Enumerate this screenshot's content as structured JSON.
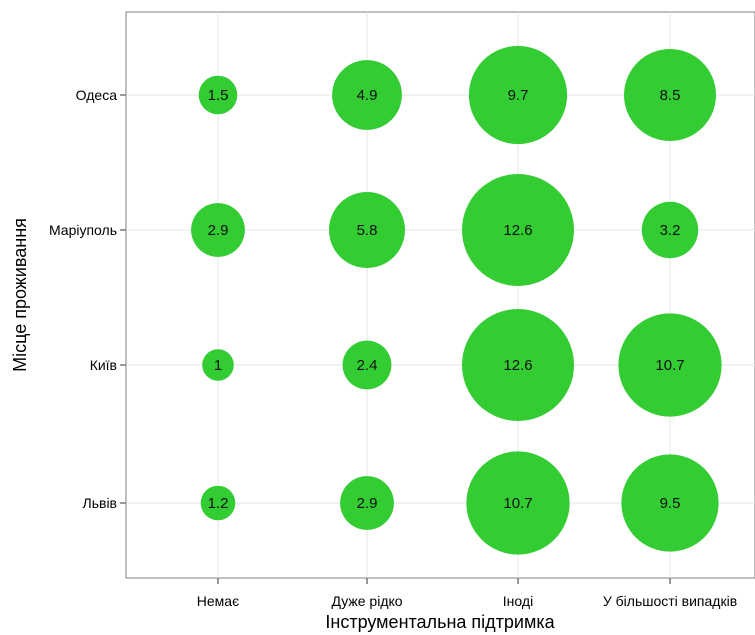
{
  "chart_data": {
    "type": "bubble",
    "xlabel": "Інструментальна підтримка",
    "ylabel": "Місце проживання",
    "x_categories": [
      "Немає",
      "Дуже рідко",
      "Іноді",
      "У більшості випадків"
    ],
    "y_categories": [
      "Одеса",
      "Маріуполь",
      "Київ",
      "Львів"
    ],
    "points": [
      {
        "x": "Немає",
        "y": "Одеса",
        "value": 1.5
      },
      {
        "x": "Дуже рідко",
        "y": "Одеса",
        "value": 4.9
      },
      {
        "x": "Іноді",
        "y": "Одеса",
        "value": 9.7
      },
      {
        "x": "У більшості випадків",
        "y": "Одеса",
        "value": 8.5
      },
      {
        "x": "Немає",
        "y": "Маріуполь",
        "value": 2.9
      },
      {
        "x": "Дуже рідко",
        "y": "Маріуполь",
        "value": 5.8
      },
      {
        "x": "Іноді",
        "y": "Маріуполь",
        "value": 12.6
      },
      {
        "x": "У більшості випадків",
        "y": "Маріуполь",
        "value": 3.2
      },
      {
        "x": "Немає",
        "y": "Київ",
        "value": 1
      },
      {
        "x": "Дуже рідко",
        "y": "Київ",
        "value": 2.4
      },
      {
        "x": "Іноді",
        "y": "Київ",
        "value": 12.6
      },
      {
        "x": "У більшості випадків",
        "y": "Київ",
        "value": 10.7
      },
      {
        "x": "Немає",
        "y": "Львів",
        "value": 1.2
      },
      {
        "x": "Дуже рідко",
        "y": "Львів",
        "value": 2.9
      },
      {
        "x": "Іноді",
        "y": "Львів",
        "value": 10.7
      },
      {
        "x": "У більшості випадків",
        "y": "Львів",
        "value": 9.5
      }
    ],
    "bubble_color": "#33cc33",
    "grid": true
  }
}
